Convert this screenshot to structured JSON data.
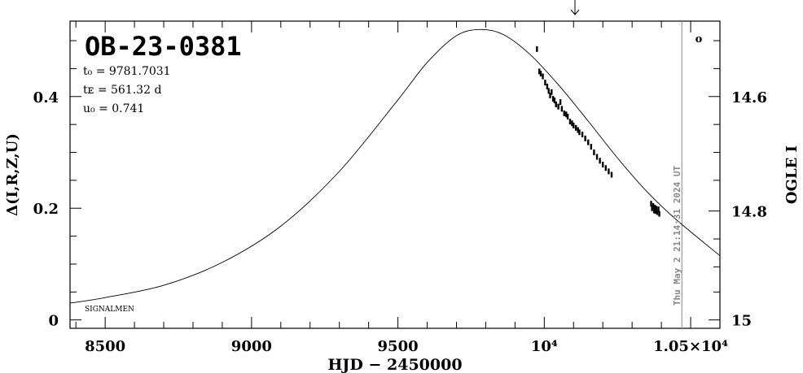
{
  "chart_data": {
    "type": "scatter",
    "title": "OB-23-0381",
    "params": [
      "t₀ = 9781.7031",
      "tᴇ = 561.32 d",
      "u₀ = 0.741"
    ],
    "xlabel": "HJD − 2450000",
    "ylabel_left": "Δ(I,R,Z,U)",
    "ylabel_right": "OGLE I",
    "footnote": "SIGNALMEN",
    "timestamp": "Thu May  2 21:14:31 2024 UT",
    "now_x": 10470,
    "legend_marker": "o",
    "xlim": [
      8380,
      10600
    ],
    "ylim": [
      -0.015,
      0.535
    ],
    "x_ticks": [
      {
        "v": 8500,
        "label": "8500"
      },
      {
        "v": 9000,
        "label": "9000"
      },
      {
        "v": 9500,
        "label": "9500"
      },
      {
        "v": 10000,
        "label": "10⁴"
      },
      {
        "v": 10500,
        "label": "1.05×10⁴"
      }
    ],
    "y_ticks_left": [
      {
        "v": 0,
        "label": "0"
      },
      {
        "v": 0.2,
        "label": "0.2"
      },
      {
        "v": 0.4,
        "label": "0.4"
      }
    ],
    "y_ticks_right": [
      {
        "v": 0.4,
        "label": "14.6"
      },
      {
        "v": 0.195,
        "label": "14.8"
      },
      {
        "v": 0.0,
        "label": "15"
      }
    ],
    "model": {
      "x": [
        8380,
        8500,
        8700,
        8900,
        9100,
        9300,
        9500,
        9600,
        9700,
        9781.7,
        9860,
        9950,
        10050,
        10150,
        10250,
        10350,
        10450,
        10600
      ],
      "y": [
        0.03,
        0.04,
        0.062,
        0.103,
        0.168,
        0.266,
        0.394,
        0.461,
        0.509,
        0.52,
        0.511,
        0.476,
        0.42,
        0.356,
        0.29,
        0.23,
        0.18,
        0.115
      ]
    },
    "points": {
      "x": [
        9975,
        9983,
        9988,
        9995,
        10003,
        10010,
        10015,
        10020,
        10025,
        10030,
        10035,
        10040,
        10048,
        10055,
        10060,
        10068,
        10075,
        10080,
        10088,
        10095,
        10100,
        10108,
        10115,
        10120,
        10130,
        10140,
        10150,
        10160,
        10170,
        10180,
        10190,
        10200,
        10210,
        10220,
        10230,
        10365,
        10368,
        10372,
        10375,
        10378,
        10380,
        10383,
        10386,
        10390,
        10393
      ],
      "y": [
        0.485,
        0.445,
        0.441,
        0.436,
        0.425,
        0.418,
        0.41,
        0.402,
        0.408,
        0.396,
        0.393,
        0.386,
        0.382,
        0.39,
        0.378,
        0.37,
        0.368,
        0.364,
        0.355,
        0.352,
        0.348,
        0.344,
        0.34,
        0.336,
        0.332,
        0.325,
        0.318,
        0.31,
        0.3,
        0.292,
        0.285,
        0.278,
        0.272,
        0.266,
        0.26,
        0.208,
        0.2,
        0.204,
        0.196,
        0.201,
        0.195,
        0.199,
        0.193,
        0.198,
        0.19
      ]
    }
  }
}
